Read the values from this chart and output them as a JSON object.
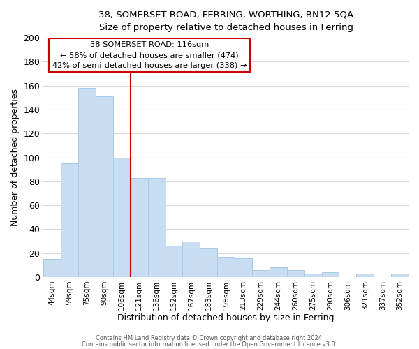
{
  "title1": "38, SOMERSET ROAD, FERRING, WORTHING, BN12 5QA",
  "title2": "Size of property relative to detached houses in Ferring",
  "xlabel": "Distribution of detached houses by size in Ferring",
  "ylabel": "Number of detached properties",
  "categories": [
    "44sqm",
    "59sqm",
    "75sqm",
    "90sqm",
    "106sqm",
    "121sqm",
    "136sqm",
    "152sqm",
    "167sqm",
    "183sqm",
    "198sqm",
    "213sqm",
    "229sqm",
    "244sqm",
    "260sqm",
    "275sqm",
    "290sqm",
    "306sqm",
    "321sqm",
    "337sqm",
    "352sqm"
  ],
  "values": [
    15,
    95,
    158,
    151,
    100,
    83,
    83,
    26,
    30,
    24,
    17,
    16,
    6,
    8,
    6,
    3,
    4,
    0,
    3,
    0,
    3
  ],
  "bar_color": "#c8ddf2",
  "bar_edge_color": "#a8c8e8",
  "vline_color": "#cc0000",
  "annotation_title": "38 SOMERSET ROAD: 116sqm",
  "annotation_line1": "← 58% of detached houses are smaller (474)",
  "annotation_line2": "42% of semi-detached houses are larger (338) →",
  "annotation_box_color": "#ffffff",
  "annotation_box_edge": "#cc0000",
  "ylim": [
    0,
    200
  ],
  "yticks": [
    0,
    20,
    40,
    60,
    80,
    100,
    120,
    140,
    160,
    180,
    200
  ],
  "footer1": "Contains HM Land Registry data © Crown copyright and database right 2024.",
  "footer2": "Contains public sector information licensed under the Open Government Licence v3.0.",
  "grid_color": "#d8d8d8",
  "background_color": "#ffffff"
}
